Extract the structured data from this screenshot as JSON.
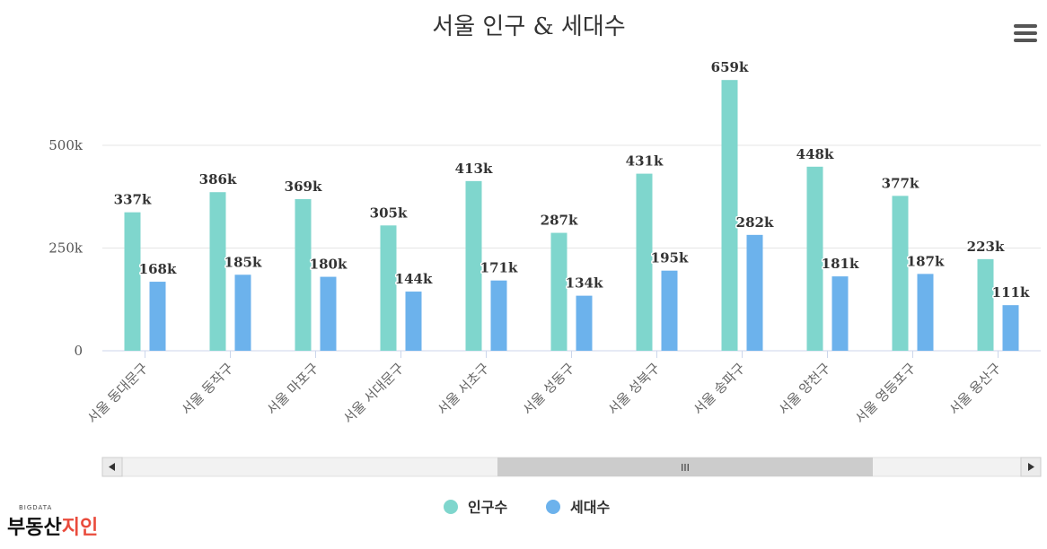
{
  "menu_icon": "hamburger-menu-icon",
  "logo": {
    "small": "BIGDATA",
    "main_left": "부동산",
    "main_right": "지인"
  },
  "colors": {
    "population": "#7fd6cd",
    "households": "#6cb2ec",
    "scrollbar_thumb": "#cccccc",
    "scrollbar_track": "#f2f2f2"
  },
  "scrollbar": {
    "thumb_label": "III",
    "left_arrow_icon": "left-arrow-icon",
    "right_arrow_icon": "right-arrow-icon",
    "thumb_start": 0.4,
    "thumb_end": 0.826
  },
  "chart_data": {
    "type": "bar",
    "title": "서울 인구 & 세대수",
    "xlabel": "",
    "ylabel": "",
    "ylim": [
      0,
      650000
    ],
    "yticks": [
      0,
      250000,
      500000
    ],
    "ytick_labels": [
      "0",
      "250k",
      "500k"
    ],
    "grid": true,
    "legend_position": "bottom",
    "categories": [
      "서울 동대문구",
      "서울 동작구",
      "서울 마포구",
      "서울 서대문구",
      "서울 서초구",
      "서울 성동구",
      "서울 성북구",
      "서울 송파구",
      "서울 양천구",
      "서울 영등포구",
      "서울 용산구"
    ],
    "series": [
      {
        "name": "인구수",
        "color": "#7fd6cd",
        "values": [
          337000,
          386000,
          369000,
          305000,
          413000,
          287000,
          431000,
          659000,
          448000,
          377000,
          223000
        ],
        "labels": [
          "337k",
          "386k",
          "369k",
          "305k",
          "413k",
          "287k",
          "431k",
          "659k",
          "448k",
          "377k",
          "223k"
        ]
      },
      {
        "name": "세대수",
        "color": "#6cb2ec",
        "values": [
          168000,
          185000,
          180000,
          144000,
          171000,
          134000,
          195000,
          282000,
          181000,
          187000,
          111000
        ],
        "labels": [
          "168k",
          "185k",
          "180k",
          "144k",
          "171k",
          "134k",
          "195k",
          "282k",
          "181k",
          "187k",
          "111k"
        ]
      }
    ]
  }
}
